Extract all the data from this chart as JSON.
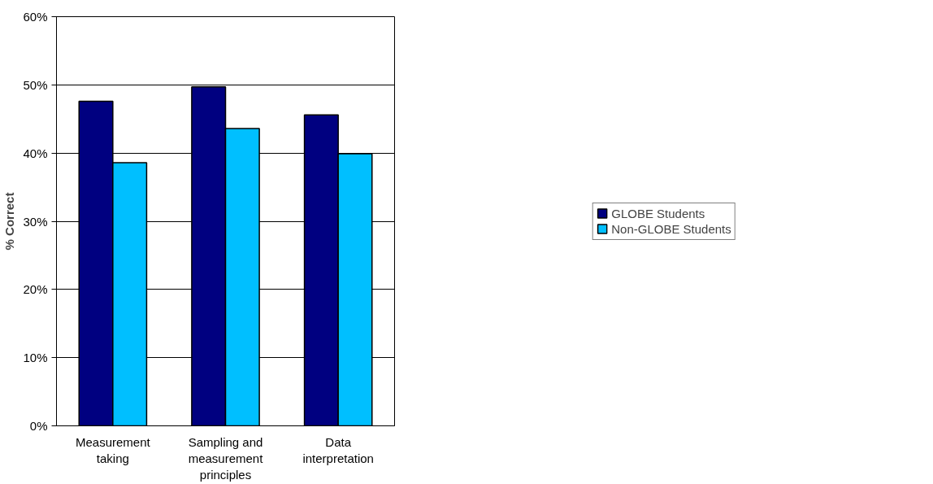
{
  "chart_data": {
    "type": "bar",
    "ylabel": "% Correct",
    "categories": [
      "Measurement taking",
      "Sampling and measurement principles",
      "Data interpretation"
    ],
    "series": [
      {
        "name": "GLOBE Students",
        "color": "#000080",
        "values": [
          47.6,
          49.7,
          45.6
        ]
      },
      {
        "name": "Non-GLOBE Students",
        "color": "#00bfff",
        "values": [
          38.6,
          43.6,
          39.9
        ]
      }
    ],
    "ylim": [
      0,
      60
    ],
    "yticks": [
      {
        "value": 0,
        "label": "0%"
      },
      {
        "value": 10,
        "label": "10%"
      },
      {
        "value": 20,
        "label": "20%"
      },
      {
        "value": 30,
        "label": "30%"
      },
      {
        "value": 40,
        "label": "40%"
      },
      {
        "value": 50,
        "label": "50%"
      },
      {
        "value": 60,
        "label": "60%"
      }
    ],
    "grid": "y",
    "legend": "right"
  }
}
